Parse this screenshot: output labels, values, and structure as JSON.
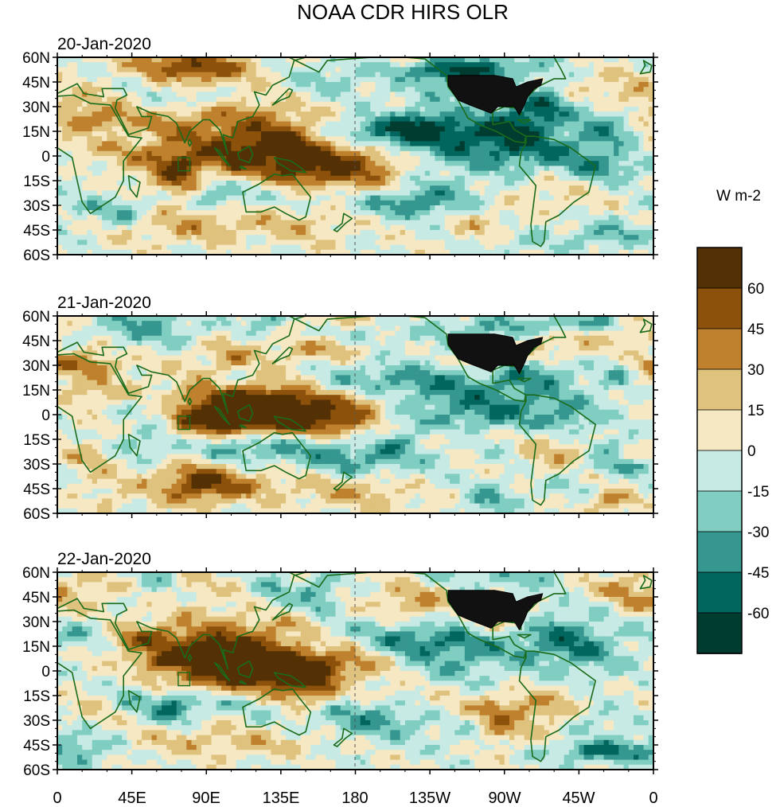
{
  "title": "NOAA CDR HIRS OLR",
  "units": "W m-2",
  "panels": [
    {
      "date": "20-Jan-2020",
      "seed": 3
    },
    {
      "date": "21-Jan-2020",
      "seed": 11
    },
    {
      "date": "22-Jan-2020",
      "seed": 29
    }
  ],
  "lat_ticks": [
    "60N",
    "45N",
    "30N",
    "15N",
    "0",
    "15S",
    "30S",
    "45S",
    "60S"
  ],
  "lon_ticks": [
    "0",
    "45E",
    "90E",
    "135E",
    "180",
    "135W",
    "90W",
    "45W",
    "0"
  ],
  "colorbar": {
    "labels": [
      "60",
      "45",
      "30",
      "15",
      "0",
      "-15",
      "-30",
      "-45",
      "-60"
    ],
    "colors": [
      "#543005",
      "#8c510a",
      "#bf812d",
      "#dfc27d",
      "#f6e8c3",
      "#c7eae5",
      "#80cdc1",
      "#35978f",
      "#01665e",
      "#003c30"
    ]
  },
  "colors": {
    "coast": "#1a6b1a",
    "dateline": "#555555",
    "usa_mask": "#111111"
  }
}
